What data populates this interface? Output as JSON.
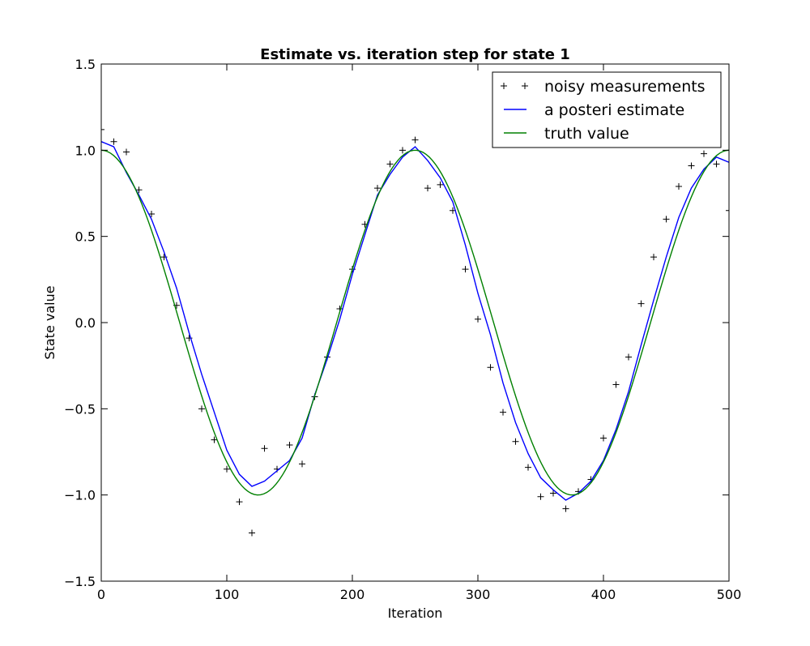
{
  "chart_data": {
    "type": "line",
    "title": "Estimate vs. iteration step for state 1",
    "xlabel": "Iteration",
    "ylabel": "State value",
    "xlim": [
      0,
      500
    ],
    "ylim": [
      -1.5,
      1.5
    ],
    "xticks": [
      0,
      100,
      200,
      300,
      400,
      500
    ],
    "xtick_labels": [
      "0",
      "100",
      "200",
      "300",
      "400",
      "500"
    ],
    "yticks": [
      -1.5,
      -1.0,
      -0.5,
      0.0,
      0.5,
      1.0,
      1.5
    ],
    "ytick_labels": [
      "−1.5",
      "−1.0",
      "−0.5",
      "0.0",
      "0.5",
      "1.0",
      "1.5"
    ],
    "grid": false,
    "legend_position": "top-right",
    "series": [
      {
        "name": "noisy measurements",
        "style": "markers",
        "marker": "+",
        "color": "#000000",
        "x": [
          0,
          10,
          20,
          30,
          40,
          50,
          60,
          70,
          80,
          90,
          100,
          110,
          120,
          130,
          140,
          150,
          160,
          170,
          180,
          190,
          200,
          210,
          220,
          230,
          240,
          250,
          260,
          270,
          280,
          290,
          300,
          310,
          320,
          330,
          340,
          350,
          360,
          370,
          380,
          390,
          400,
          410,
          420,
          430,
          440,
          450,
          460,
          470,
          480,
          490,
          500
        ],
        "y": [
          1.12,
          1.05,
          0.99,
          0.77,
          0.63,
          0.38,
          0.1,
          -0.09,
          -0.5,
          -0.68,
          -0.85,
          -1.04,
          -1.22,
          -0.73,
          -0.85,
          -0.71,
          -0.82,
          -0.43,
          -0.2,
          0.08,
          0.31,
          0.57,
          0.78,
          0.92,
          1.0,
          1.06,
          0.78,
          0.8,
          0.65,
          0.31,
          0.02,
          -0.26,
          -0.52,
          -0.69,
          -0.84,
          -1.01,
          -0.99,
          -1.08,
          -0.98,
          -0.91,
          -0.67,
          -0.36,
          -0.2,
          0.11,
          0.38,
          0.6,
          0.79,
          0.91,
          0.98,
          0.92,
          0.65
        ]
      },
      {
        "name": "a posteri estimate",
        "style": "line",
        "color": "#0000ff",
        "x": [
          0,
          10,
          20,
          30,
          40,
          50,
          60,
          70,
          80,
          90,
          100,
          110,
          120,
          130,
          140,
          150,
          160,
          170,
          180,
          190,
          200,
          210,
          220,
          230,
          240,
          250,
          260,
          270,
          280,
          290,
          300,
          310,
          320,
          330,
          340,
          350,
          360,
          370,
          380,
          390,
          400,
          410,
          420,
          430,
          440,
          450,
          460,
          470,
          480,
          490,
          500
        ],
        "y": [
          1.05,
          1.02,
          0.87,
          0.74,
          0.6,
          0.41,
          0.2,
          -0.06,
          -0.3,
          -0.52,
          -0.74,
          -0.88,
          -0.95,
          -0.92,
          -0.86,
          -0.8,
          -0.67,
          -0.42,
          -0.21,
          0.02,
          0.28,
          0.51,
          0.74,
          0.86,
          0.96,
          1.02,
          0.94,
          0.84,
          0.7,
          0.45,
          0.17,
          -0.07,
          -0.35,
          -0.58,
          -0.76,
          -0.9,
          -0.97,
          -1.03,
          -0.99,
          -0.92,
          -0.8,
          -0.62,
          -0.4,
          -0.13,
          0.13,
          0.38,
          0.61,
          0.78,
          0.89,
          0.96,
          0.93
        ]
      },
      {
        "name": "truth value",
        "style": "line",
        "color": "#008000",
        "function": "cos(2*pi*x/250)",
        "samples": 201
      }
    ]
  }
}
